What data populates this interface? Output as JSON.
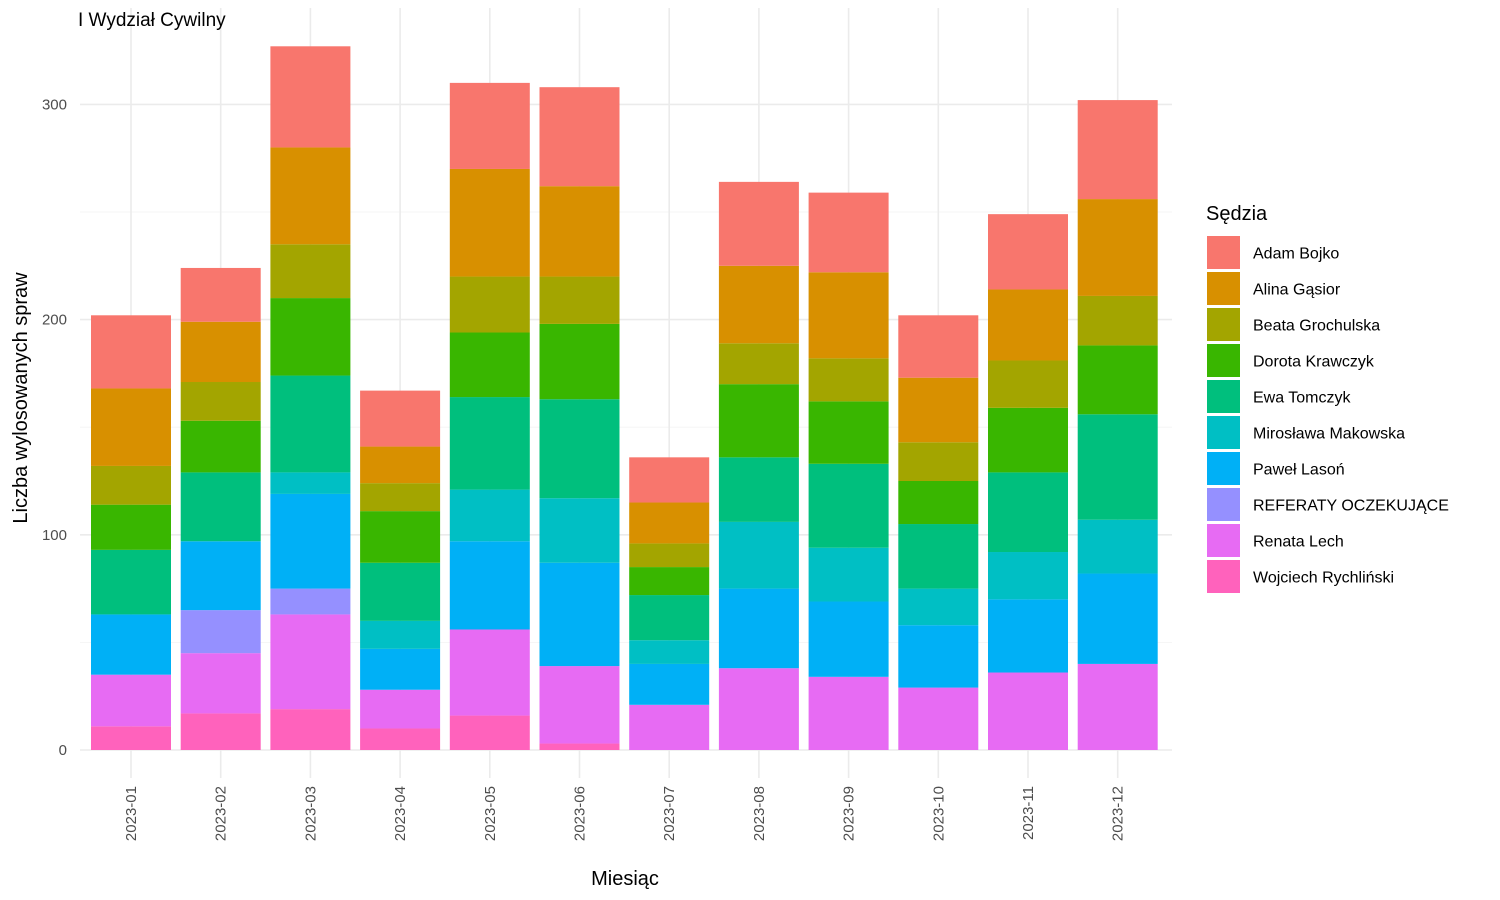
{
  "chart_data": {
    "type": "bar",
    "stacked": true,
    "title": "I Wydział Cywilny",
    "xlabel": "Miesiąc",
    "ylabel": "Liczba wylosowanych spraw",
    "ylim": [
      0,
      330
    ],
    "y_ticks": [
      0,
      100,
      200,
      300
    ],
    "grid": true,
    "legend_position": "right",
    "legend_title": "Sędzia",
    "categories": [
      "2023-01",
      "2023-02",
      "2023-03",
      "2023-04",
      "2023-05",
      "2023-06",
      "2023-07",
      "2023-08",
      "2023-09",
      "2023-10",
      "2023-11",
      "2023-12"
    ],
    "series": [
      {
        "name": "Adam Bojko",
        "color": "#F8766D",
        "values": [
          34,
          25,
          47,
          26,
          40,
          46,
          21,
          39,
          37,
          29,
          35,
          46
        ]
      },
      {
        "name": "Alina Gąsior",
        "color": "#D89000",
        "values": [
          36,
          28,
          45,
          17,
          50,
          42,
          19,
          36,
          40,
          30,
          33,
          45
        ]
      },
      {
        "name": "Beata Grochulska",
        "color": "#A3A500",
        "values": [
          18,
          18,
          25,
          13,
          26,
          22,
          11,
          19,
          20,
          18,
          22,
          23
        ]
      },
      {
        "name": "Dorota Krawczyk",
        "color": "#39B600",
        "values": [
          21,
          24,
          36,
          24,
          30,
          35,
          13,
          34,
          29,
          20,
          30,
          32
        ]
      },
      {
        "name": "Ewa Tomczyk",
        "color": "#00BF7D",
        "values": [
          30,
          32,
          45,
          27,
          43,
          46,
          21,
          30,
          39,
          30,
          37,
          49
        ]
      },
      {
        "name": "Mirosława Makowska",
        "color": "#00BFC4",
        "values": [
          0,
          0,
          10,
          13,
          24,
          30,
          11,
          31,
          25,
          17,
          22,
          25
        ]
      },
      {
        "name": "Paweł Lasoń",
        "color": "#00B0F6",
        "values": [
          28,
          32,
          44,
          19,
          41,
          48,
          19,
          37,
          35,
          29,
          34,
          42
        ]
      },
      {
        "name": "REFERATY OCZEKUJĄCE",
        "color": "#9590FF",
        "values": [
          0,
          20,
          12,
          0,
          0,
          0,
          0,
          0,
          0,
          0,
          0,
          0
        ]
      },
      {
        "name": "Renata Lech",
        "color": "#E76BF3",
        "values": [
          24,
          28,
          44,
          18,
          40,
          36,
          21,
          38,
          34,
          29,
          36,
          40
        ]
      },
      {
        "name": "Wojciech Rychliński",
        "color": "#FF62BC",
        "values": [
          11,
          17,
          19,
          10,
          16,
          3,
          0,
          0,
          0,
          0,
          0,
          0
        ]
      }
    ]
  }
}
